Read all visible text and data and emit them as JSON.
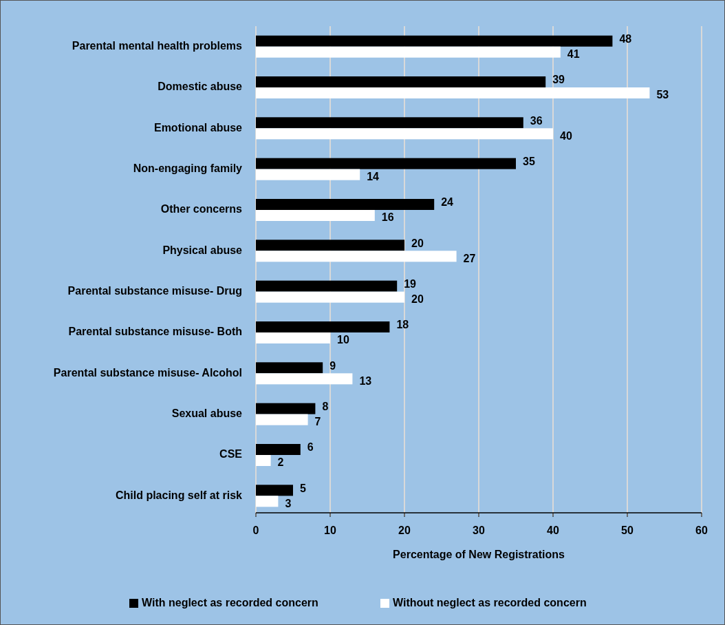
{
  "chart_data": {
    "type": "bar",
    "orientation": "horizontal",
    "xlabel": "Percentage of New Registrations",
    "categories": [
      "Parental mental health problems",
      "Domestic abuse",
      "Emotional abuse",
      "Non-engaging family",
      "Other concerns",
      "Physical abuse",
      "Parental substance misuse- Drug",
      "Parental substance misuse- Both",
      "Parental substance misuse- Alcohol",
      "Sexual abuse",
      "CSE",
      "Child placing self at risk"
    ],
    "series": [
      {
        "name": "With neglect as recorded concern",
        "color": "#000000",
        "values": [
          48,
          39,
          36,
          35,
          24,
          20,
          19,
          18,
          9,
          8,
          6,
          5
        ]
      },
      {
        "name": "Without neglect as recorded concern",
        "color": "#ffffff",
        "values": [
          41,
          53,
          40,
          14,
          16,
          27,
          20,
          10,
          13,
          7,
          2,
          3
        ]
      }
    ],
    "xlim": [
      0,
      60
    ],
    "xticks": [
      0,
      10,
      20,
      30,
      40,
      50,
      60
    ],
    "grid": "x",
    "legend": "bottom",
    "data_labels": true
  }
}
